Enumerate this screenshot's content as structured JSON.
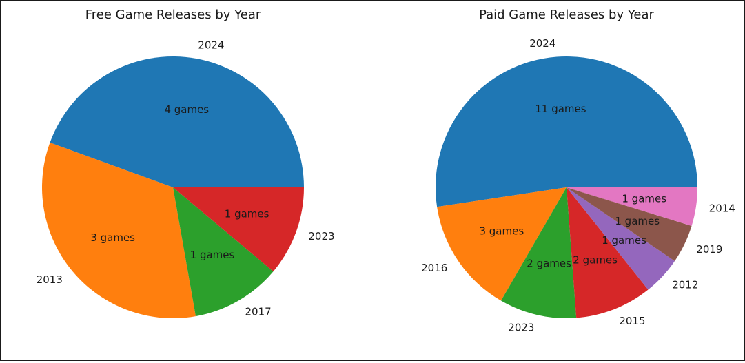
{
  "chart_data": [
    {
      "type": "pie",
      "title": "Free Game Releases by Year",
      "categories": [
        "2024",
        "2013",
        "2017",
        "2023"
      ],
      "values": [
        4,
        3,
        1,
        1
      ],
      "value_labels": [
        "4 games",
        "3 games",
        "1 games",
        "1 games"
      ],
      "colors": [
        "#1f77b4",
        "#ff7f0e",
        "#2ca02c",
        "#d62728"
      ],
      "start_angle": 0,
      "direction": "counterclockwise",
      "legend": false
    },
    {
      "type": "pie",
      "title": "Paid Game Releases by Year",
      "categories": [
        "2024",
        "2016",
        "2023",
        "2015",
        "2012",
        "2019",
        "2014"
      ],
      "values": [
        11,
        3,
        2,
        2,
        1,
        1,
        1
      ],
      "value_labels": [
        "11 games",
        "3 games",
        "2 games",
        "2 games",
        "1 games",
        "1 games",
        "1 games"
      ],
      "colors": [
        "#1f77b4",
        "#ff7f0e",
        "#2ca02c",
        "#d62728",
        "#9467bd",
        "#8c564b",
        "#e377c2"
      ],
      "start_angle": 0,
      "direction": "counterclockwise",
      "legend": false
    }
  ]
}
